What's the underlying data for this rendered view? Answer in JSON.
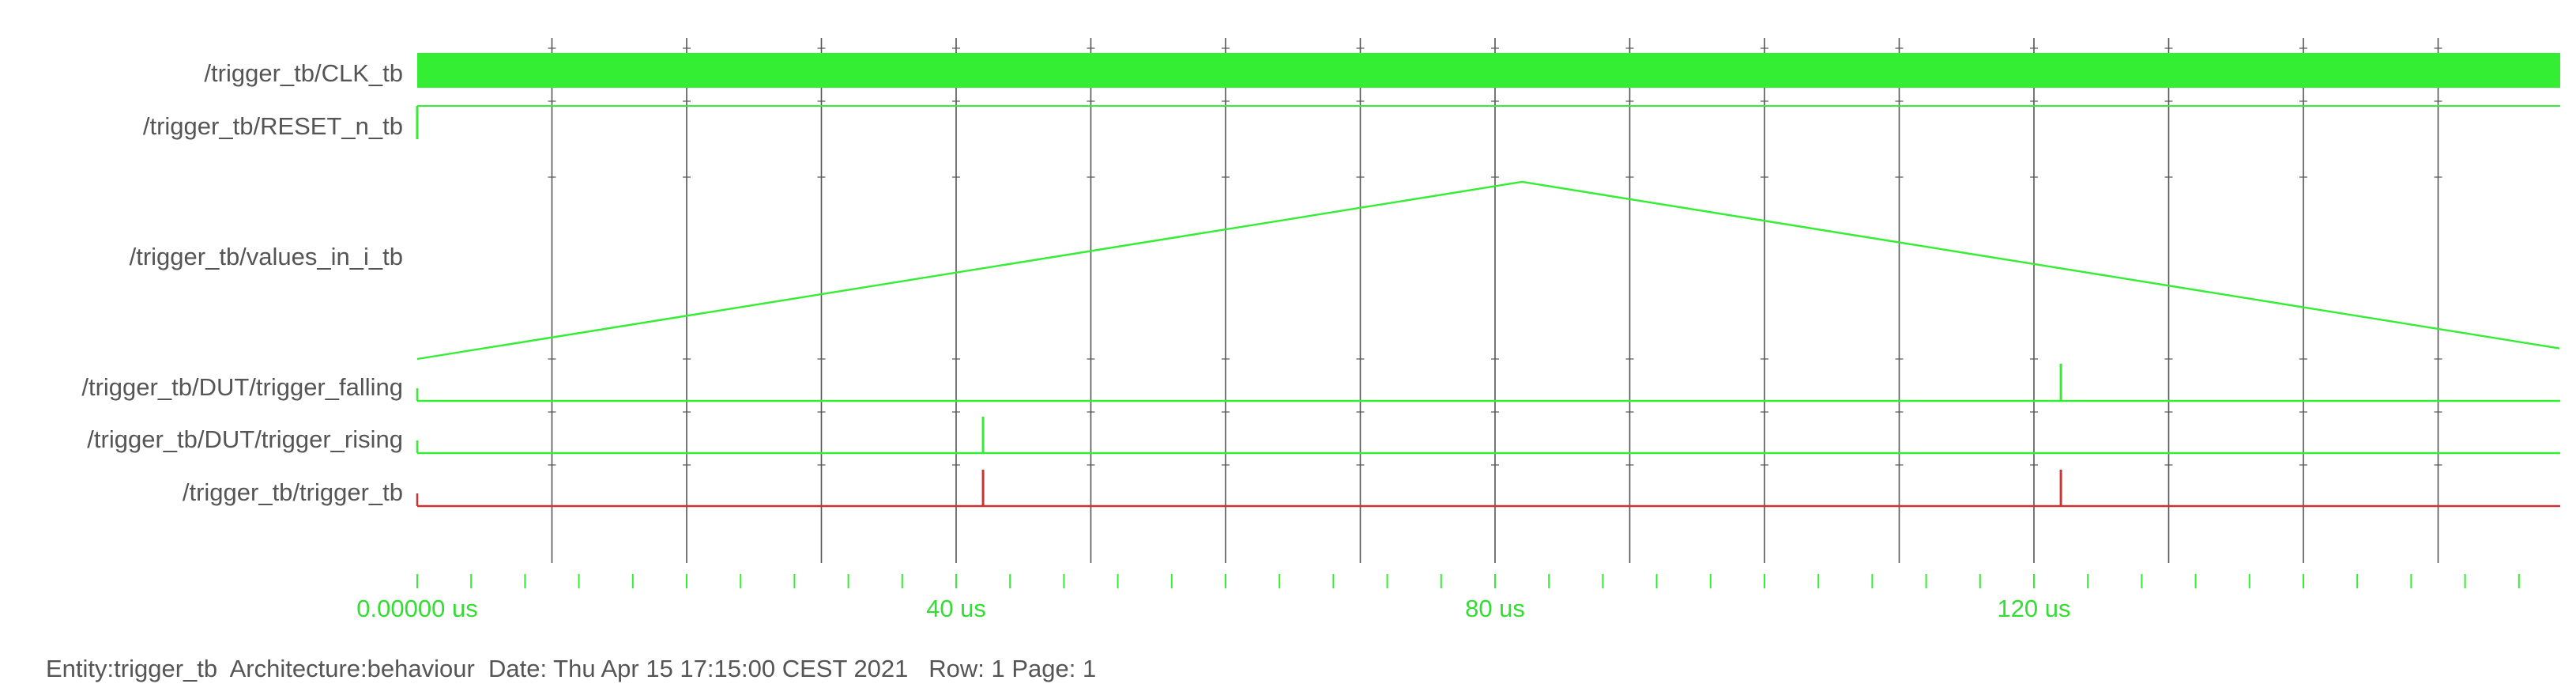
{
  "colors": {
    "wave": "#33ee33",
    "trigger": "#cc3333",
    "grid": "#555555",
    "label": "#555555",
    "time_label": "#33dd33"
  },
  "chart_data": {
    "type": "waveform",
    "x_unit": "us",
    "x_range": [
      0,
      159
    ],
    "grid_major_step": 10,
    "minor_step": 4,
    "time_labels": [
      {
        "t": 0,
        "text": "0.00000 us"
      },
      {
        "t": 40,
        "text": "40 us"
      },
      {
        "t": 80,
        "text": "80 us"
      },
      {
        "t": 120,
        "text": "120 us"
      }
    ],
    "signals": [
      {
        "name": "/trigger_tb/CLK_tb",
        "kind": "clock"
      },
      {
        "name": "/trigger_tb/RESET_n_tb",
        "kind": "digital",
        "edges": [
          {
            "t": 0,
            "v": 1
          }
        ]
      },
      {
        "name": "/trigger_tb/values_in_i_tb",
        "kind": "analog",
        "points": [
          [
            0,
            0
          ],
          [
            82,
            1
          ],
          [
            159,
            0.06
          ]
        ]
      },
      {
        "name": "/trigger_tb/DUT/trigger_falling",
        "kind": "pulse",
        "pulses": [
          122
        ]
      },
      {
        "name": "/trigger_tb/DUT/trigger_rising",
        "kind": "pulse",
        "pulses": [
          42
        ]
      },
      {
        "name": "/trigger_tb/trigger_tb",
        "kind": "pulse",
        "pulses": [
          42,
          122
        ],
        "color": "trigger"
      }
    ]
  },
  "footer": {
    "text": "Entity:trigger_tb  Architecture:behaviour  Date: Thu Apr 15 17:15:00 CEST 2021   Row: 1 Page: 1"
  }
}
